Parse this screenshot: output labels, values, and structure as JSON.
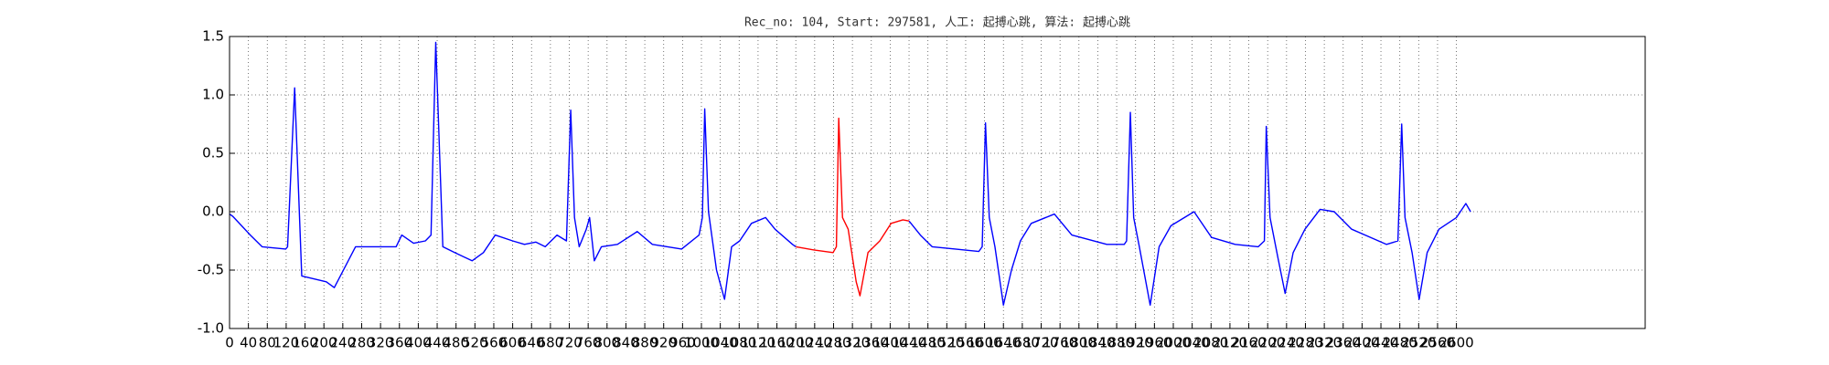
{
  "chart_data": {
    "type": "line",
    "title": "Rec_no: 104, Start: 297581, 人工: 起搏心跳, 算法: 起搏心跳",
    "x": [
      0,
      7,
      44,
      69,
      119,
      123,
      138,
      153,
      205,
      222,
      267,
      353,
      365,
      390,
      415,
      427,
      437,
      452,
      477,
      514,
      538,
      563,
      600,
      625,
      649,
      669,
      694,
      714,
      723,
      731,
      741,
      756,
      763,
      773,
      788,
      822,
      864,
      896,
      958,
      995,
      1002,
      1007,
      1015,
      1032,
      1049,
      1064,
      1081,
      1106,
      1136,
      1156,
      1193,
      1200,
      1242,
      1279,
      1286,
      1291,
      1299,
      1311,
      1328,
      1336,
      1353,
      1378,
      1402,
      1427,
      1440,
      1464,
      1489,
      1538,
      1588,
      1595,
      1602,
      1610,
      1622,
      1640,
      1657,
      1676,
      1699,
      1748,
      1785,
      1859,
      1896,
      1901,
      1909,
      1916,
      1928,
      1951,
      1970,
      1995,
      2044,
      2081,
      2131,
      2180,
      2193,
      2197,
      2205,
      2222,
      2237,
      2254,
      2279,
      2311,
      2341,
      2378,
      2452,
      2476,
      2484,
      2491,
      2506,
      2521,
      2538,
      2563,
      2600,
      2620,
      2630
    ],
    "series": [
      {
        "color": "#0000ff",
        "values": [
          -0.02,
          -0.04,
          -0.2,
          -0.3,
          -0.32,
          -0.3,
          1.06,
          -0.55,
          -0.6,
          -0.65,
          -0.3,
          -0.3,
          -0.2,
          -0.27,
          -0.25,
          -0.2,
          1.45,
          -0.3,
          -0.35,
          -0.42,
          -0.35,
          -0.2,
          -0.25,
          -0.28,
          -0.26,
          -0.3,
          -0.2,
          -0.25,
          0.87,
          -0.05,
          -0.3,
          -0.15,
          -0.05,
          -0.42,
          -0.3,
          -0.28,
          -0.17,
          -0.28,
          -0.32,
          -0.2,
          -0.05,
          0.88,
          0,
          -0.5,
          -0.75,
          -0.3,
          -0.25,
          -0.1,
          -0.05,
          -0.15,
          -0.28,
          -0.3,
          null,
          null,
          null,
          null,
          null,
          null,
          null,
          null,
          null,
          null,
          null,
          null,
          -0.08,
          -0.2,
          -0.3,
          -0.32,
          -0.34,
          -0.3,
          0.76,
          -0.05,
          -0.3,
          -0.8,
          -0.5,
          -0.25,
          -0.1,
          -0.02,
          -0.2,
          -0.28,
          -0.28,
          -0.25,
          0.85,
          -0.05,
          -0.3,
          -0.8,
          -0.3,
          -0.12,
          0,
          -0.22,
          -0.28,
          -0.3,
          -0.25,
          0.73,
          -0.05,
          -0.4,
          -0.7,
          -0.35,
          -0.15,
          0.02,
          0,
          -0.15,
          -0.28,
          -0.25,
          0.75,
          -0.05,
          -0.35,
          -0.75,
          -0.35,
          -0.15,
          -0.05,
          0.07,
          0
        ]
      },
      {
        "color": "#ff0000",
        "values": [
          null,
          null,
          null,
          null,
          null,
          null,
          null,
          null,
          null,
          null,
          null,
          null,
          null,
          null,
          null,
          null,
          null,
          null,
          null,
          null,
          null,
          null,
          null,
          null,
          null,
          null,
          null,
          null,
          null,
          null,
          null,
          null,
          null,
          null,
          null,
          null,
          null,
          null,
          null,
          null,
          null,
          null,
          null,
          null,
          null,
          null,
          null,
          null,
          null,
          null,
          null,
          -0.3,
          -0.33,
          -0.35,
          -0.3,
          0.8,
          -0.05,
          -0.15,
          -0.6,
          -0.72,
          -0.35,
          -0.25,
          -0.1,
          -0.07,
          -0.08,
          null,
          null,
          null,
          null,
          null,
          null,
          null,
          null,
          null,
          null,
          null,
          null,
          null,
          null,
          null,
          null,
          null,
          null,
          null,
          null,
          null,
          null,
          null,
          null,
          null,
          null,
          null,
          null,
          null,
          null,
          null,
          null,
          null,
          null,
          null,
          null,
          null,
          null,
          null,
          null,
          null,
          null,
          null,
          null,
          null,
          null,
          null,
          null
        ]
      }
    ],
    "xlim": [
      0,
      3000
    ],
    "xticks": [
      0,
      40,
      80,
      120,
      160,
      200,
      240,
      280,
      320,
      360,
      400,
      440,
      480,
      520,
      560,
      600,
      640,
      680,
      720,
      760,
      800,
      840,
      880,
      920,
      960,
      1000,
      1040,
      1080,
      1120,
      1160,
      1200,
      1240,
      1280,
      1320,
      1360,
      1400,
      1440,
      1480,
      1520,
      1560,
      1600,
      1640,
      1680,
      1720,
      1760,
      1800,
      1840,
      1880,
      1920,
      1960,
      2000,
      2040,
      2080,
      2120,
      2160,
      2200,
      2240,
      2280,
      2320,
      2360,
      2400,
      2440,
      2480,
      2520,
      2560,
      2600
    ],
    "ylim": [
      -1,
      1.5
    ],
    "yticks": [
      {
        "value": -1,
        "label": "-1.0"
      },
      -0.5,
      {
        "value": 0,
        "label": "0.0"
      },
      0.5,
      {
        "value": 1,
        "label": "1.0"
      },
      1.5
    ],
    "grid": true
  }
}
